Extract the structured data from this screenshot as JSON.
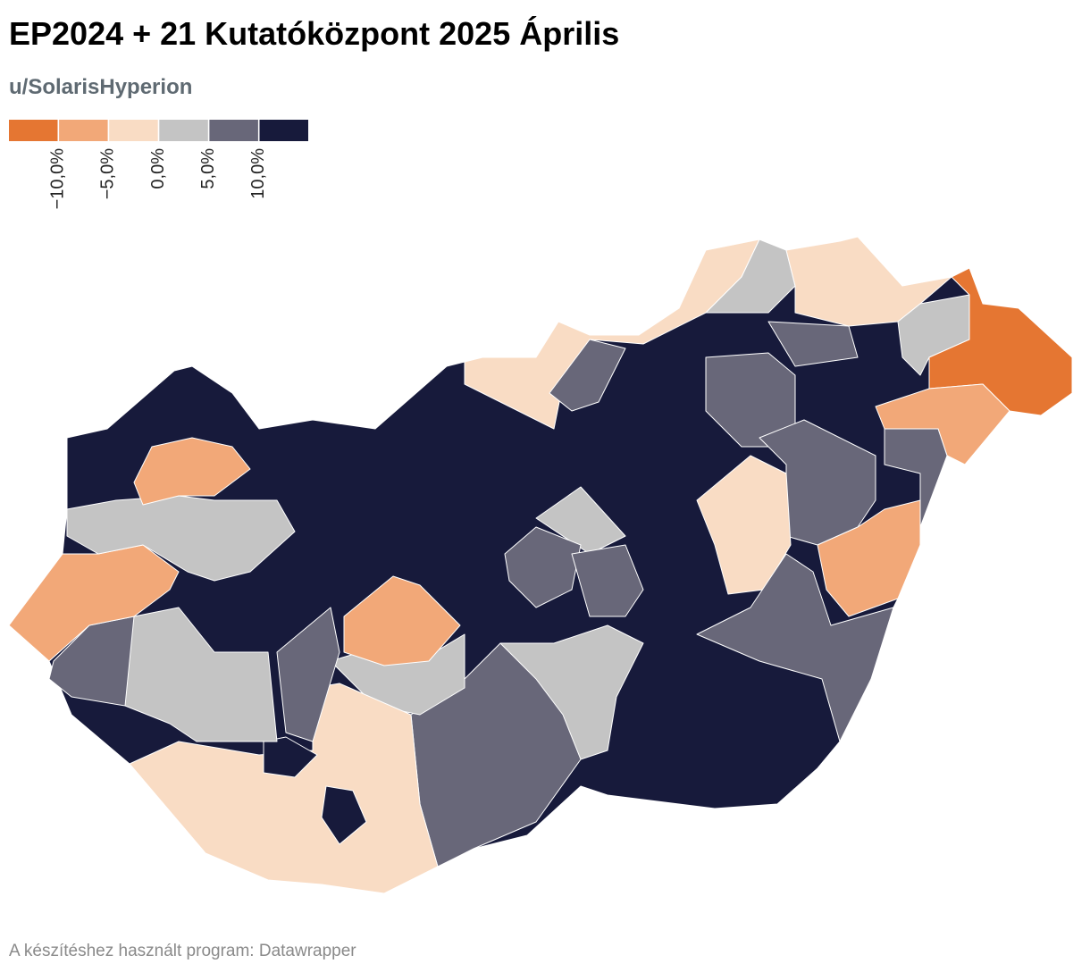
{
  "header": {
    "title": "EP2024 + 21 Kutatóközpont 2025 Április",
    "subtitle": "u/SolarisHyperion"
  },
  "legend": {
    "colors": [
      "#e57632",
      "#f2a878",
      "#f9dcc4",
      "#c4c4c4",
      "#686779",
      "#171a3b"
    ],
    "ticks": [
      {
        "value": -10,
        "label": "−10,0%"
      },
      {
        "value": -5,
        "label": "−5,0%"
      },
      {
        "value": 0,
        "label": "0,0%"
      },
      {
        "value": 5,
        "label": "5,0%"
      },
      {
        "value": 10,
        "label": "10,0%"
      }
    ]
  },
  "footer": {
    "credit": "A készítéshez használt program: Datawrapper"
  }
}
